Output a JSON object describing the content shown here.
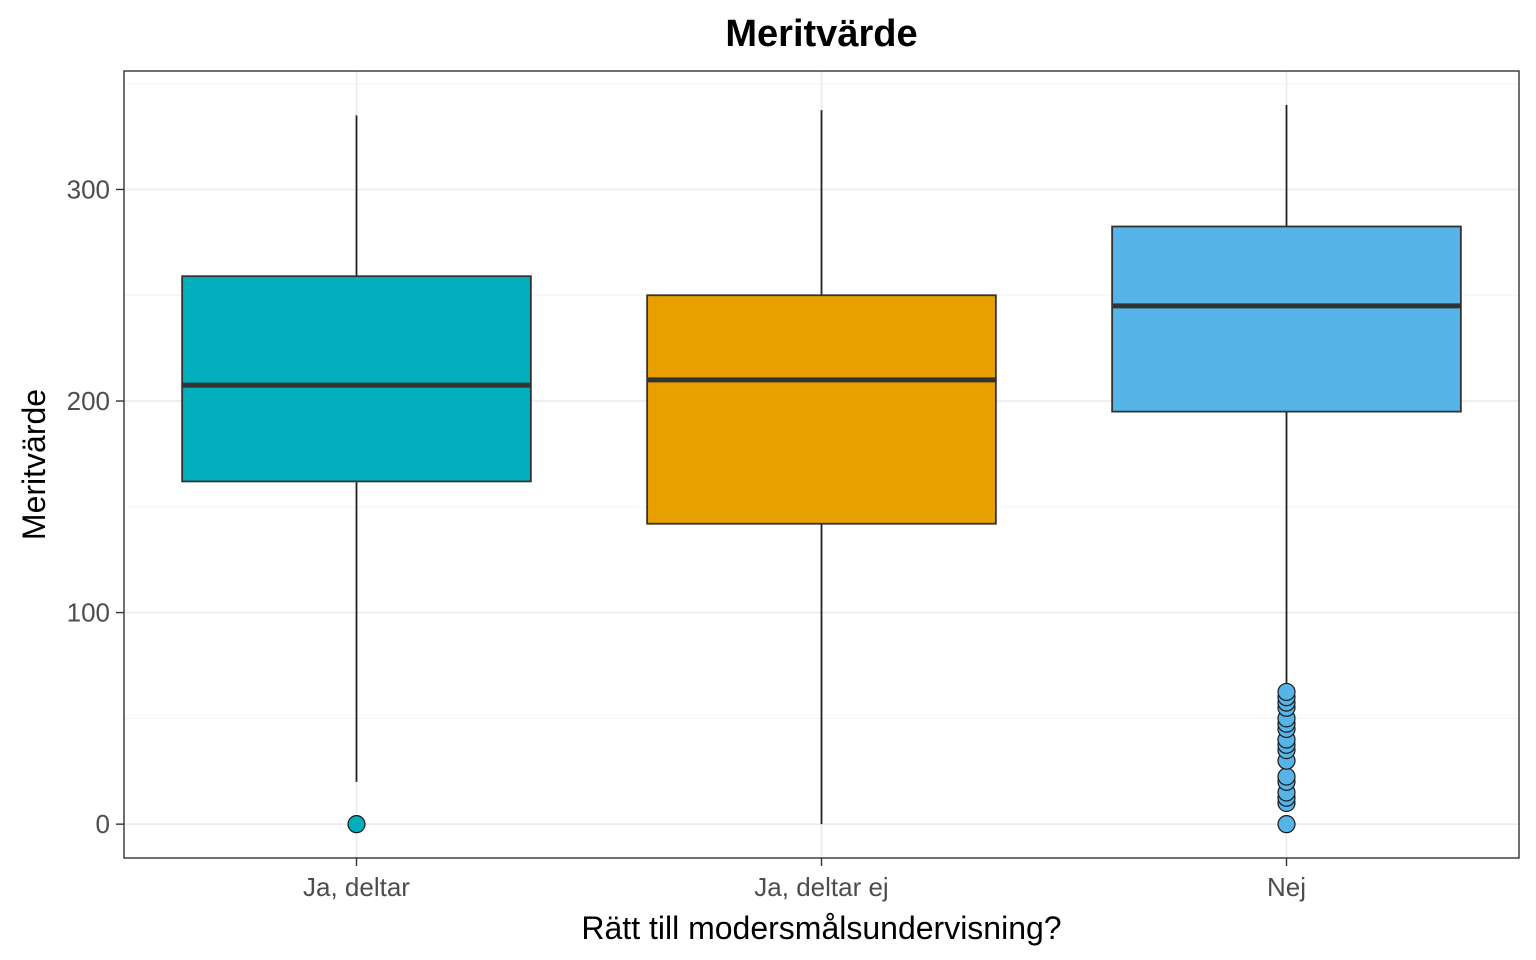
{
  "chart_data": {
    "type": "boxplot",
    "title": "Meritvärde",
    "xlabel": "Rätt till modersmålsundervisning?",
    "ylabel": "Meritvärde",
    "ylim": [
      -16,
      356
    ],
    "y_ticks": [
      0,
      100,
      200,
      300
    ],
    "y_tick_labels": [
      "0",
      "100",
      "200",
      "300"
    ],
    "grid": true,
    "legend": "none",
    "categories": [
      "Ja, deltar",
      "Ja, deltar ej",
      "Nej"
    ],
    "boxes": [
      {
        "category": "Ja, deltar",
        "color": "#00AFBB",
        "whisker_low": 20,
        "q1": 162,
        "median": 207.5,
        "q3": 259,
        "whisker_high": 335,
        "outliers": [
          0
        ]
      },
      {
        "category": "Ja, deltar ej",
        "color": "#E7A000",
        "whisker_low": 0,
        "q1": 142,
        "median": 210,
        "q3": 250,
        "whisker_high": 337.5
      },
      {
        "category": "Nej",
        "color": "#56B4E9",
        "whisker_low": 65,
        "q1": 195,
        "median": 245,
        "q3": 282.5,
        "whisker_high": 340,
        "outliers": [
          0,
          10,
          12.5,
          15,
          20,
          22.5,
          30,
          35,
          37.5,
          40,
          45,
          47.5,
          50,
          55,
          57.5,
          60,
          62.5
        ]
      }
    ]
  }
}
